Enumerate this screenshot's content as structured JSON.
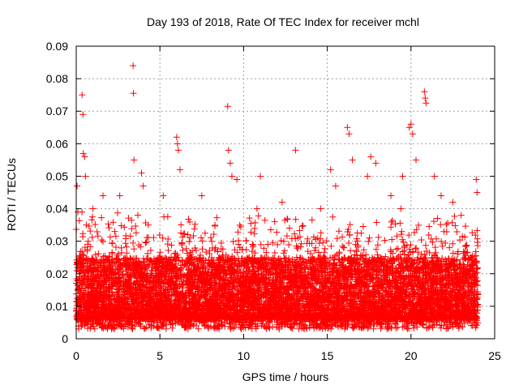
{
  "chart_data": {
    "type": "scatter",
    "title": "Day 193 of 2018, Rate Of TEC Index for receiver mchl",
    "xlabel": "GPS time / hours",
    "ylabel": "ROTI / TECUs",
    "xlim": [
      0,
      25
    ],
    "ylim": [
      0,
      0.09
    ],
    "xticks": [
      "0",
      "5",
      "10",
      "15",
      "20",
      "25"
    ],
    "yticks": [
      "0",
      "0.01",
      "0.02",
      "0.03",
      "0.04",
      "0.05",
      "0.06",
      "0.07",
      "0.08",
      "0.09"
    ],
    "grid": true,
    "marker": "plus",
    "color": "#ff0000",
    "series": [
      {
        "x": [
          0.05,
          0.1,
          0.35,
          0.4,
          0.42,
          0.5,
          0.55,
          0.6,
          1.0,
          1.6,
          2.3,
          2.6,
          3.4,
          3.42,
          3.45,
          3.9,
          4.0,
          5.2,
          6.0,
          6.05,
          6.1,
          6.2,
          7.5,
          9.05,
          9.1,
          9.2,
          9.3,
          9.6,
          10.8,
          11.0,
          12.3,
          13.1,
          14.6,
          15.2,
          15.5,
          16.2,
          16.3,
          16.5,
          17.4,
          17.6,
          17.9,
          18.8,
          19.4,
          19.5,
          19.9,
          20.0,
          20.1,
          20.3,
          20.8,
          20.85,
          20.9,
          21.4,
          21.8,
          22.5,
          23.0,
          23.9,
          23.95
        ],
        "y": [
          0.047,
          0.039,
          0.075,
          0.069,
          0.057,
          0.056,
          0.05,
          0.035,
          0.04,
          0.044,
          0.033,
          0.044,
          0.084,
          0.0755,
          0.055,
          0.051,
          0.047,
          0.044,
          0.062,
          0.06,
          0.058,
          0.052,
          0.044,
          0.0715,
          0.058,
          0.054,
          0.05,
          0.049,
          0.04,
          0.05,
          0.042,
          0.058,
          0.04,
          0.052,
          0.047,
          0.065,
          0.063,
          0.055,
          0.05,
          0.056,
          0.054,
          0.044,
          0.04,
          0.05,
          0.065,
          0.066,
          0.063,
          0.055,
          0.076,
          0.074,
          0.0725,
          0.05,
          0.044,
          0.042,
          0.038,
          0.049,
          0.045
        ]
      }
    ],
    "background_band": {
      "x_start": 0,
      "x_end": 24,
      "typical_low": 0.006,
      "typical_high": 0.025,
      "point_count": 9000
    }
  }
}
